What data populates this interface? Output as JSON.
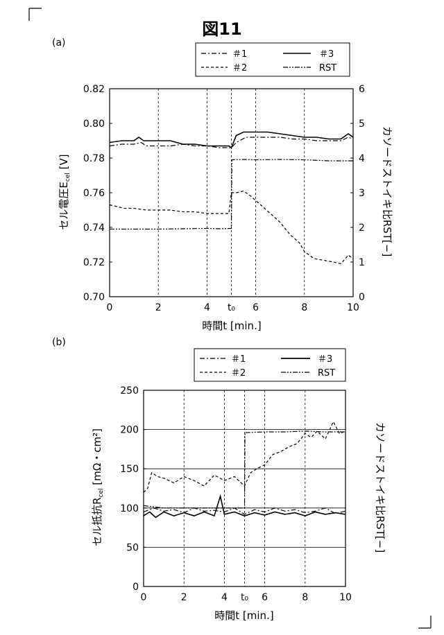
{
  "figure_title": "図11",
  "charts": [
    {
      "panel_label": "(a)",
      "x_axis_label": "時間t [min.]",
      "x_ticks": [
        "0",
        "2",
        "4",
        "t₀",
        "6",
        "8",
        "10"
      ],
      "left_axis_label": "セル電圧E",
      "left_axis_sub": "cel",
      "left_axis_suffix": " [V]",
      "left_ticks": [
        "0.70",
        "0.72",
        "0.74",
        "0.76",
        "0.78",
        "0.80",
        "0.82"
      ],
      "right_axis_label": "カソードストイキ比RST[−]",
      "right_ticks": [
        "0",
        "1",
        "2",
        "3",
        "4",
        "5",
        "6"
      ],
      "legend": [
        {
          "label": "＃1",
          "dash": "dashdot"
        },
        {
          "label": "＃3",
          "dash": "solid"
        },
        {
          "label": "＃2",
          "dash": "dashed"
        },
        {
          "label": "RST",
          "dash": "dashdotdot"
        }
      ]
    },
    {
      "panel_label": "(b)",
      "x_axis_label": "時間t [min.]",
      "x_ticks": [
        "0",
        "2",
        "4",
        "t₀",
        "6",
        "8",
        "10"
      ],
      "left_axis_label": "セル抵抗R",
      "left_axis_sub": "cel",
      "left_axis_suffix": " [mΩ・cm²]",
      "left_ticks": [
        "0",
        "50",
        "100",
        "150",
        "200",
        "250"
      ],
      "right_axis_label": "カソードストイキ比RST[−]",
      "legend": [
        {
          "label": "＃1",
          "dash": "dashdot"
        },
        {
          "label": "＃3",
          "dash": "solid"
        },
        {
          "label": "＃2",
          "dash": "dashed"
        },
        {
          "label": "RST",
          "dash": "dashdotdot"
        }
      ]
    }
  ],
  "chart_data": [
    {
      "type": "line",
      "title": "",
      "xlabel": "時間t [min.]",
      "ylabel": "セル電圧Ecel [V]",
      "y2label": "カソードストイキ比RST[−]",
      "xlim": [
        0,
        10
      ],
      "ylim": [
        0.7,
        0.82
      ],
      "y2lim": [
        0,
        6
      ],
      "grid": "vertical dashed",
      "legend_position": "top-right",
      "series": [
        {
          "name": "＃1",
          "axis": "left",
          "x": [
            0,
            0.5,
            1,
            1.3,
            1.5,
            2,
            2.5,
            3,
            3.5,
            4,
            4.5,
            5,
            5.2,
            5.6,
            6,
            6.5,
            7,
            7.5,
            8,
            8.5,
            9,
            9.5,
            9.8,
            10
          ],
          "y": [
            0.787,
            0.788,
            0.788,
            0.789,
            0.787,
            0.787,
            0.787,
            0.788,
            0.787,
            0.787,
            0.786,
            0.786,
            0.789,
            0.792,
            0.792,
            0.792,
            0.792,
            0.791,
            0.791,
            0.79,
            0.79,
            0.79,
            0.792,
            0.791
          ]
        },
        {
          "name": "＃3",
          "axis": "left",
          "x": [
            0,
            0.5,
            1,
            1.2,
            1.4,
            2,
            2.5,
            3,
            3.5,
            4,
            4.5,
            4.9,
            5,
            5.2,
            5.5,
            6,
            6.5,
            7,
            7.5,
            8,
            8.5,
            9,
            9.5,
            9.8,
            10
          ],
          "y": [
            0.789,
            0.79,
            0.79,
            0.792,
            0.79,
            0.79,
            0.79,
            0.788,
            0.788,
            0.787,
            0.787,
            0.787,
            0.786,
            0.793,
            0.795,
            0.795,
            0.795,
            0.794,
            0.793,
            0.792,
            0.792,
            0.791,
            0.791,
            0.794,
            0.792
          ]
        },
        {
          "name": "＃2",
          "axis": "left",
          "x": [
            0,
            0.3,
            0.6,
            1,
            1.5,
            2,
            2.5,
            3,
            3.5,
            4,
            4.5,
            4.9,
            5.0,
            5.2,
            5.5,
            5.8,
            6.2,
            6.6,
            7,
            7.4,
            7.8,
            8,
            8.4,
            8.8,
            9.2,
            9.5,
            9.8,
            10
          ],
          "y": [
            0.753,
            0.752,
            0.751,
            0.751,
            0.75,
            0.75,
            0.75,
            0.749,
            0.749,
            0.748,
            0.748,
            0.748,
            0.76,
            0.76,
            0.761,
            0.758,
            0.753,
            0.748,
            0.743,
            0.736,
            0.731,
            0.726,
            0.722,
            0.721,
            0.72,
            0.719,
            0.724,
            0.722
          ]
        },
        {
          "name": "RST",
          "axis": "right",
          "x": [
            0,
            0.5,
            1,
            2,
            3,
            4,
            4.5,
            5,
            5.02,
            5.5,
            6,
            7,
            8,
            9,
            10
          ],
          "y": [
            1.95,
            1.95,
            1.95,
            1.95,
            1.96,
            1.97,
            1.96,
            1.97,
            3.95,
            3.96,
            3.95,
            3.96,
            3.95,
            3.92,
            3.92
          ]
        }
      ]
    },
    {
      "type": "line",
      "title": "",
      "xlabel": "時間t [min.]",
      "ylabel": "セル抵抗Rcel [mΩ・cm²]",
      "y2label": "カソードストイキ比RST[−]",
      "xlim": [
        0,
        10
      ],
      "ylim": [
        0,
        250
      ],
      "grid": "vertical dashed, horizontal solid",
      "legend_position": "top-right",
      "series": [
        {
          "name": "＃1",
          "axis": "left",
          "x": [
            0,
            0.5,
            1,
            1.5,
            2,
            2.5,
            3,
            3.5,
            4,
            4.5,
            5,
            5.5,
            6,
            6.5,
            7,
            7.5,
            8,
            8.5,
            9,
            9.5,
            10
          ],
          "y": [
            95,
            100,
            96,
            98,
            94,
            100,
            96,
            97,
            95,
            100,
            92,
            98,
            95,
            100,
            96,
            98,
            94,
            96,
            100,
            93,
            96
          ]
        },
        {
          "name": "＃3",
          "axis": "left",
          "x": [
            0,
            0.3,
            0.6,
            1,
            1.5,
            2,
            2.5,
            3,
            3.5,
            3.8,
            4,
            4.5,
            5,
            5.5,
            6,
            6.5,
            7,
            7.5,
            8,
            8.5,
            9,
            9.5,
            10
          ],
          "y": [
            90,
            95,
            88,
            95,
            90,
            94,
            90,
            95,
            90,
            115,
            92,
            95,
            90,
            94,
            91,
            95,
            92,
            94,
            90,
            95,
            92,
            94,
            92
          ]
        },
        {
          "name": "＃2",
          "axis": "left",
          "x": [
            0,
            0.2,
            0.4,
            0.7,
            1,
            1.5,
            2,
            2.5,
            3,
            3.5,
            4,
            4.5,
            5,
            5.3,
            5.6,
            6,
            6.4,
            6.8,
            7.2,
            7.6,
            8,
            8.3,
            8.6,
            9,
            9.4,
            9.7,
            10
          ],
          "y": [
            120,
            125,
            145,
            140,
            138,
            132,
            140,
            135,
            128,
            142,
            135,
            140,
            128,
            145,
            150,
            155,
            168,
            172,
            178,
            182,
            195,
            190,
            198,
            188,
            210,
            195,
            198
          ]
        },
        {
          "name": "RST",
          "axis": "right",
          "x": [
            0,
            1,
            2,
            3,
            4,
            4.5,
            5,
            5.02,
            6,
            7,
            8,
            9,
            10
          ],
          "y": [
            103,
            100,
            100,
            100,
            100,
            100,
            100,
            196,
            197,
            197,
            198,
            197,
            197
          ]
        }
      ]
    }
  ]
}
